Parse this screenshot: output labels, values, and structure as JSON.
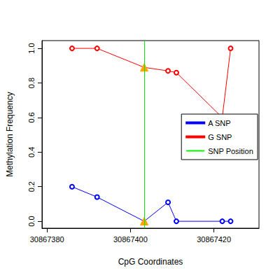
{
  "chart_data": {
    "type": "line",
    "x_label": "CpG Coordinates",
    "y_label": "Methylation Frequency",
    "x": [
      30867386,
      30867392,
      30867403.3,
      30867409,
      30867411,
      30867422,
      30867424
    ],
    "series": [
      {
        "name": "A SNP",
        "color": "#0000ff",
        "marker": "circle",
        "values": [
          0.2,
          0.14,
          0,
          0.11,
          0,
          0,
          0
        ]
      },
      {
        "name": "G SNP",
        "color": "#ff0000",
        "marker": "circle",
        "values": [
          1,
          1,
          0.89,
          0.87,
          0.86,
          0.6,
          1
        ]
      },
      {
        "name": "SNP Position",
        "type": "vline",
        "color": "#00ee00",
        "x": 30867403.3
      }
    ],
    "xlim": [
      30867378.8,
      30867430.8
    ],
    "ylim": [
      -0.04,
      1.045
    ],
    "xticks": [
      30867380,
      30867400,
      30867420
    ],
    "yticks": [
      {
        "value": 0,
        "label": "0.0"
      },
      0.2,
      0.4,
      0.6,
      0.8,
      {
        "value": 1,
        "label": "1.0"
      }
    ],
    "grid": false,
    "legend": "right"
  }
}
